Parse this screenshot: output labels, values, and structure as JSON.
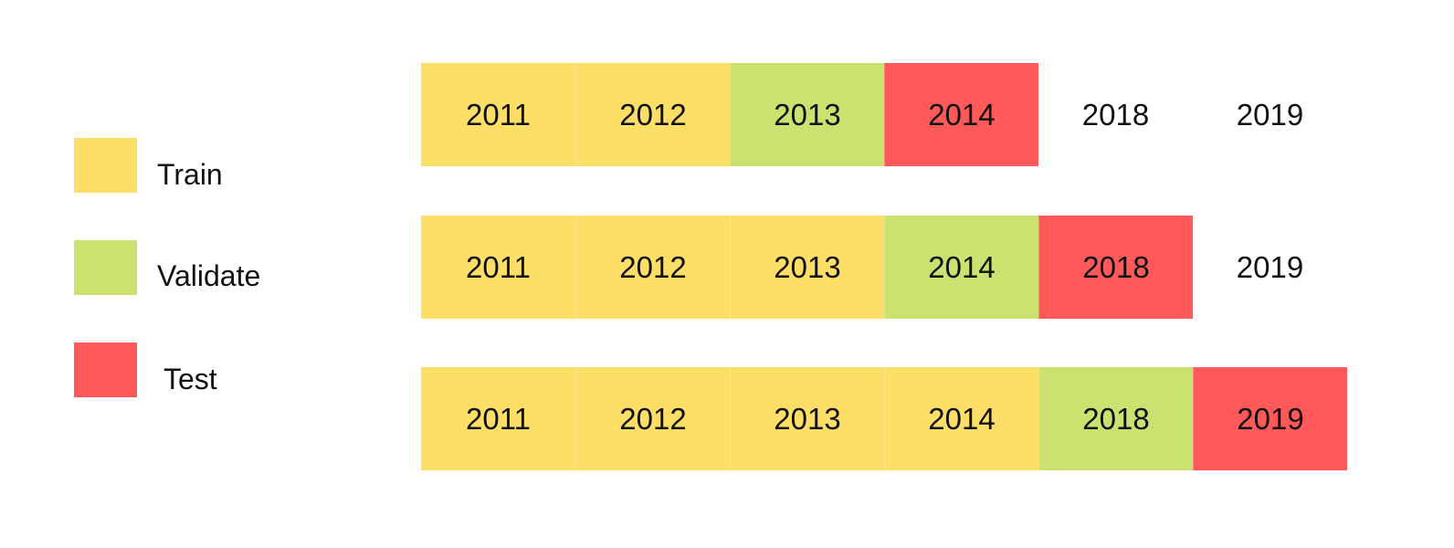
{
  "colors": {
    "train": "#FDDE66",
    "validate": "#CBE270",
    "test": "#FF5A59",
    "none": "#FFFFFF"
  },
  "legend": [
    {
      "role": "train",
      "label": "Train"
    },
    {
      "role": "validate",
      "label": "Validate"
    },
    {
      "role": "test",
      "label": "Test"
    }
  ],
  "folds": [
    {
      "cells": [
        {
          "year": "2011",
          "role": "train"
        },
        {
          "year": "2012",
          "role": "train"
        },
        {
          "year": "2013",
          "role": "validate"
        },
        {
          "year": "2014",
          "role": "test"
        },
        {
          "year": "2018",
          "role": "none"
        },
        {
          "year": "2019",
          "role": "none"
        }
      ]
    },
    {
      "cells": [
        {
          "year": "2011",
          "role": "train"
        },
        {
          "year": "2012",
          "role": "train"
        },
        {
          "year": "2013",
          "role": "train"
        },
        {
          "year": "2014",
          "role": "validate"
        },
        {
          "year": "2018",
          "role": "test"
        },
        {
          "year": "2019",
          "role": "none"
        }
      ]
    },
    {
      "cells": [
        {
          "year": "2011",
          "role": "train"
        },
        {
          "year": "2012",
          "role": "train"
        },
        {
          "year": "2013",
          "role": "train"
        },
        {
          "year": "2014",
          "role": "train"
        },
        {
          "year": "2018",
          "role": "validate"
        },
        {
          "year": "2019",
          "role": "test"
        }
      ]
    }
  ]
}
